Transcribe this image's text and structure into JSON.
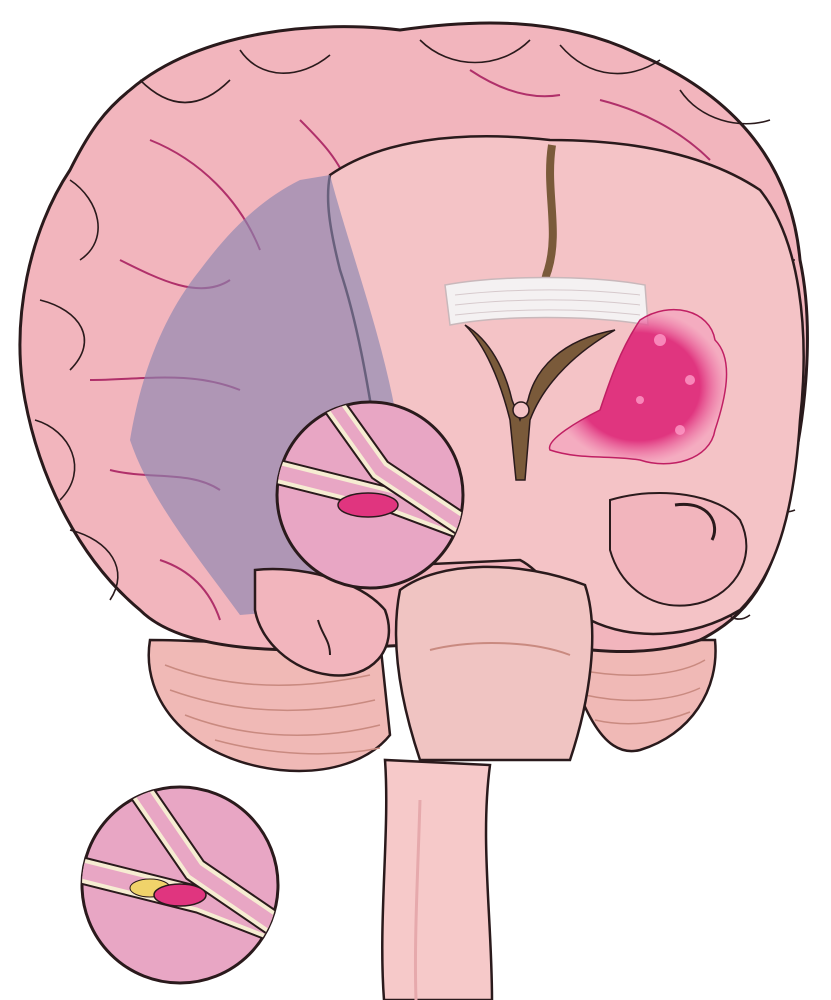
{
  "diagram": {
    "subject": "brain-coronal-section-hemorrhagic-stroke",
    "colors": {
      "cortex": "#f2b5bd",
      "cortex_shade": "#e49aa6",
      "outline": "#2a1a1c",
      "vessel_line": "#b0306a",
      "inner_section": "#f4c3c6",
      "ventricle": "#7a5a3a",
      "corpus_callosum": "#f4f1f2",
      "hemorrhage": "#e0357f",
      "hemorrhage_glow": "#f58ab8",
      "ischemic_zone": "#8a86b0",
      "cerebellum": "#f0b9b6",
      "brainstem": "#f6c9c9",
      "zoom_bg": "#e8a6c4",
      "vessel_wall": "#f6ecd2",
      "plaque": "#f0d36a"
    },
    "icons": [
      "magnify-circle-vessel-clot",
      "magnify-circle-vessel-plaque-clot"
    ]
  }
}
